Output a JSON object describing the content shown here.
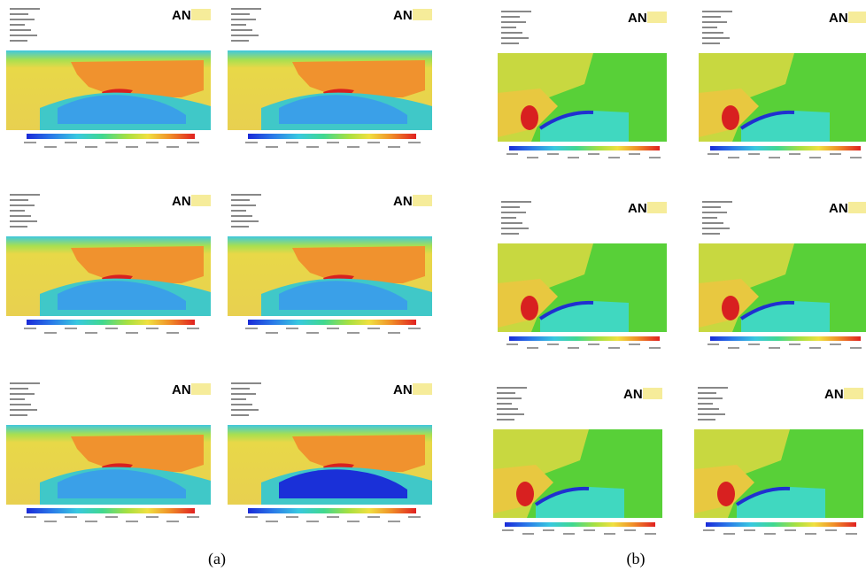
{
  "logo": "AN",
  "captions": [
    "(a)",
    "(b)"
  ]
}
